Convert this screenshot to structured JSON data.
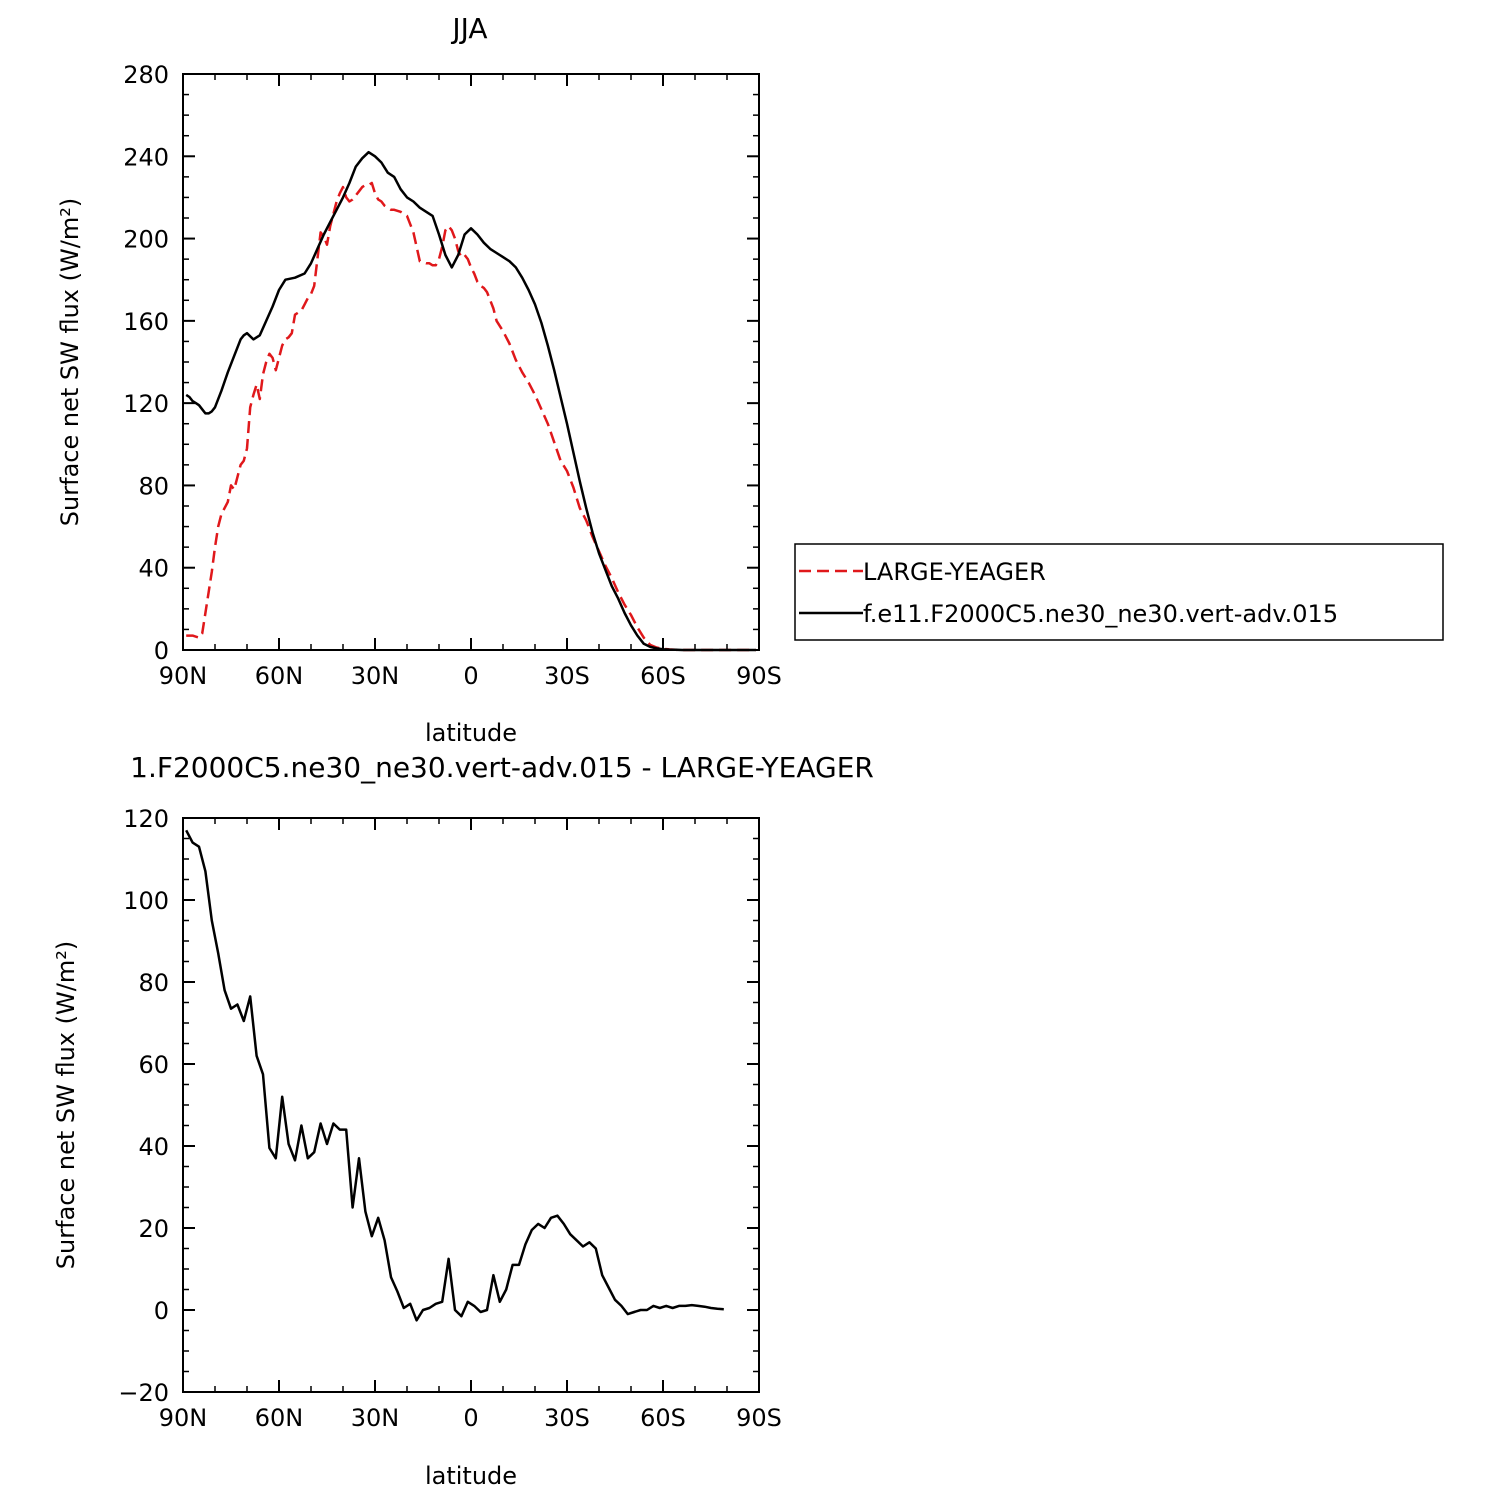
{
  "chart_data": [
    {
      "type": "line",
      "title": "JJA",
      "xlabel": "latitude",
      "ylabel": "Surface net SW flux (W/m²)",
      "xlim": [
        90,
        -90
      ],
      "ylim": [
        0,
        280
      ],
      "x_ticks": [
        {
          "value": 90,
          "label": "90N"
        },
        {
          "value": 60,
          "label": "60N"
        },
        {
          "value": 30,
          "label": "30N"
        },
        {
          "value": 0,
          "label": "0"
        },
        {
          "value": -30,
          "label": "30S"
        },
        {
          "value": -60,
          "label": "60S"
        },
        {
          "value": -90,
          "label": "90S"
        }
      ],
      "y_ticks": [
        {
          "value": 0,
          "label": "0"
        },
        {
          "value": 40,
          "label": "40"
        },
        {
          "value": 80,
          "label": "80"
        },
        {
          "value": 120,
          "label": "120"
        },
        {
          "value": 160,
          "label": "160"
        },
        {
          "value": 200,
          "label": "200"
        },
        {
          "value": 240,
          "label": "240"
        },
        {
          "value": 280,
          "label": "280"
        }
      ],
      "legend_position": "right",
      "series": [
        {
          "name": "LARGE-YEAGER",
          "color": "#e0181b",
          "dash": "dashed",
          "x": [
            89,
            87,
            85,
            84,
            83,
            82,
            81,
            80,
            79,
            78,
            76,
            75,
            74,
            73,
            72,
            71,
            70,
            69,
            68,
            67,
            66,
            65,
            64,
            63,
            62,
            61,
            60,
            59,
            58,
            57,
            56,
            55,
            54,
            53,
            52,
            51,
            50,
            49,
            48,
            47,
            46,
            45,
            44,
            43,
            42,
            41,
            40,
            39,
            38,
            37,
            36,
            35,
            34,
            33,
            32,
            31,
            30,
            29,
            28,
            27,
            26,
            25,
            24,
            22,
            20,
            18,
            16,
            14,
            13,
            12,
            11,
            10,
            9,
            8,
            7,
            6,
            5,
            4,
            3,
            2,
            1,
            0,
            -1,
            -2,
            -3,
            -4,
            -5,
            -6,
            -7,
            -8,
            -10,
            -12,
            -14,
            -16,
            -18,
            -20,
            -22,
            -24,
            -26,
            -28,
            -30,
            -32,
            -34,
            -36,
            -38,
            -40,
            -42,
            -44,
            -46,
            -48,
            -50,
            -52,
            -54,
            -56,
            -58,
            -60,
            -62,
            -64,
            -66,
            -68,
            -70,
            -72,
            -74,
            -76,
            -78,
            -80,
            -82,
            -84,
            -86,
            -88,
            -89
          ],
          "y": [
            7,
            7,
            6,
            8,
            18,
            28,
            38,
            50,
            60,
            66,
            72,
            80,
            78,
            84,
            90,
            92,
            98,
            118,
            124,
            129,
            122,
            134,
            140,
            144,
            142,
            136,
            142,
            148,
            151,
            152,
            154,
            163,
            164,
            165,
            168,
            171,
            173,
            177,
            190,
            203,
            201,
            197,
            206,
            212,
            218,
            222,
            225,
            220,
            218,
            219,
            221,
            223,
            225,
            226,
            226,
            227,
            222,
            219,
            218,
            216,
            215,
            214,
            214,
            213,
            211,
            203,
            189,
            188,
            188,
            187,
            187,
            190,
            196,
            204,
            206,
            204,
            200,
            194,
            191,
            192,
            190,
            186,
            183,
            179,
            177,
            176,
            174,
            170,
            166,
            160,
            155,
            149,
            141,
            135,
            130,
            124,
            117,
            110,
            101,
            92,
            87,
            79,
            69,
            63,
            55,
            48,
            41,
            35,
            28,
            22,
            17,
            11,
            6,
            2.5,
            1.2,
            0.6,
            0.3,
            0.1,
            0,
            0,
            0,
            0,
            0,
            0,
            0,
            0,
            0,
            0,
            0,
            0,
            0
          ]
        },
        {
          "name": "f.e11.F2000C5.ne30_ne30.vert-adv.015",
          "color": "#000000",
          "dash": "solid",
          "x": [
            89,
            88,
            87,
            86,
            85,
            84,
            83,
            82,
            81,
            80,
            78,
            76,
            74,
            72,
            71,
            70,
            68,
            66,
            64,
            62,
            60,
            58,
            55,
            52,
            50,
            48,
            46,
            44,
            42,
            40,
            38,
            36,
            34,
            32,
            30,
            28,
            26,
            24,
            22,
            20,
            18,
            16,
            14,
            12,
            10,
            8,
            6,
            4,
            2,
            0,
            -2,
            -4,
            -6,
            -8,
            -10,
            -12,
            -14,
            -16,
            -18,
            -20,
            -22,
            -24,
            -26,
            -28,
            -30,
            -32,
            -34,
            -36,
            -38,
            -40,
            -42,
            -44,
            -46,
            -48,
            -50,
            -52,
            -54,
            -56,
            -58,
            -60,
            -62,
            -64,
            -66,
            -68,
            -70,
            -72,
            -74,
            -76,
            -78,
            -80,
            -82,
            -84,
            -86,
            -88,
            -89
          ],
          "y": [
            124,
            123,
            121,
            120,
            119,
            117,
            115,
            115,
            116,
            118,
            126,
            135,
            143,
            151,
            153,
            154,
            151,
            153,
            160,
            167,
            175,
            180,
            181,
            183,
            188,
            195,
            202,
            208,
            214,
            220,
            227,
            235,
            239,
            242,
            240,
            237,
            232,
            230,
            224,
            220,
            218,
            215,
            213,
            211,
            202,
            192,
            186,
            192,
            202,
            205,
            202,
            198,
            195,
            193,
            191,
            189,
            186,
            181,
            175,
            168,
            159,
            148,
            136,
            123,
            110,
            96,
            82,
            69,
            57,
            47,
            39,
            31,
            25,
            18,
            12,
            7,
            3,
            1.5,
            0.8,
            0.4,
            0.2,
            0.1,
            0,
            0,
            0,
            0,
            0,
            0,
            0,
            0,
            0,
            0,
            0,
            0,
            0
          ]
        }
      ]
    },
    {
      "type": "line",
      "title": "1.F2000C5.ne30_ne30.vert-adv.015 - LARGE-YEAGER",
      "xlabel": "latitude",
      "ylabel": "Surface net SW flux (W/m²)",
      "xlim": [
        90,
        -90
      ],
      "ylim": [
        -20,
        120
      ],
      "x_ticks": [
        {
          "value": 90,
          "label": "90N"
        },
        {
          "value": 60,
          "label": "60N"
        },
        {
          "value": 30,
          "label": "30N"
        },
        {
          "value": 0,
          "label": "0"
        },
        {
          "value": -30,
          "label": "30S"
        },
        {
          "value": -60,
          "label": "60S"
        },
        {
          "value": -90,
          "label": "90S"
        }
      ],
      "y_ticks": [
        {
          "value": -20,
          "label": "−20"
        },
        {
          "value": 0,
          "label": "0"
        },
        {
          "value": 20,
          "label": "20"
        },
        {
          "value": 40,
          "label": "40"
        },
        {
          "value": 60,
          "label": "60"
        },
        {
          "value": 80,
          "label": "80"
        },
        {
          "value": 100,
          "label": "100"
        },
        {
          "value": 120,
          "label": "120"
        }
      ],
      "series": [
        {
          "color": "#000000",
          "dash": "solid",
          "x": [
            89,
            87,
            85,
            83,
            81,
            79,
            77,
            75,
            73,
            71,
            69,
            67,
            65,
            63,
            61,
            59,
            57,
            55,
            53,
            51,
            49,
            47,
            45,
            43,
            41,
            39,
            37,
            35,
            33,
            31,
            29,
            27,
            25,
            23,
            21,
            19,
            17,
            15,
            13,
            11,
            9,
            7,
            5,
            3,
            1,
            -1,
            -3,
            -5,
            -7,
            -9,
            -11,
            -13,
            -15,
            -17,
            -19,
            -21,
            -23,
            -25,
            -27,
            -29,
            -31,
            -33,
            -35,
            -37,
            -39,
            -41,
            -43,
            -45,
            -47,
            -49,
            -51,
            -53,
            -55,
            -57,
            -59,
            -61,
            -63,
            -65,
            -67,
            -69,
            -71,
            -73,
            -75,
            -77,
            -79
          ],
          "y": [
            117,
            114,
            113,
            107,
            95,
            87,
            78,
            73.5,
            74.5,
            70.5,
            76.5,
            62,
            57.5,
            39.5,
            37,
            52,
            40.5,
            36.5,
            45,
            37,
            38.5,
            45.5,
            40.5,
            45.5,
            44,
            44,
            25,
            37,
            24,
            18,
            22.5,
            17,
            8,
            4.5,
            0.5,
            1.5,
            -2.5,
            0,
            0.5,
            1.5,
            2,
            12.5,
            0,
            -1.5,
            2,
            1,
            -0.5,
            0,
            8.5,
            2,
            5,
            11,
            11,
            16,
            19.5,
            21,
            20,
            22.5,
            23,
            21,
            18.5,
            17,
            15.5,
            16.5,
            15,
            8.5,
            5.5,
            2.5,
            1,
            -1,
            -0.5,
            0,
            0,
            1,
            0.5,
            1,
            0.5,
            1,
            1,
            1.2,
            1,
            0.8,
            0.5,
            0.3,
            0.2
          ]
        }
      ]
    }
  ]
}
